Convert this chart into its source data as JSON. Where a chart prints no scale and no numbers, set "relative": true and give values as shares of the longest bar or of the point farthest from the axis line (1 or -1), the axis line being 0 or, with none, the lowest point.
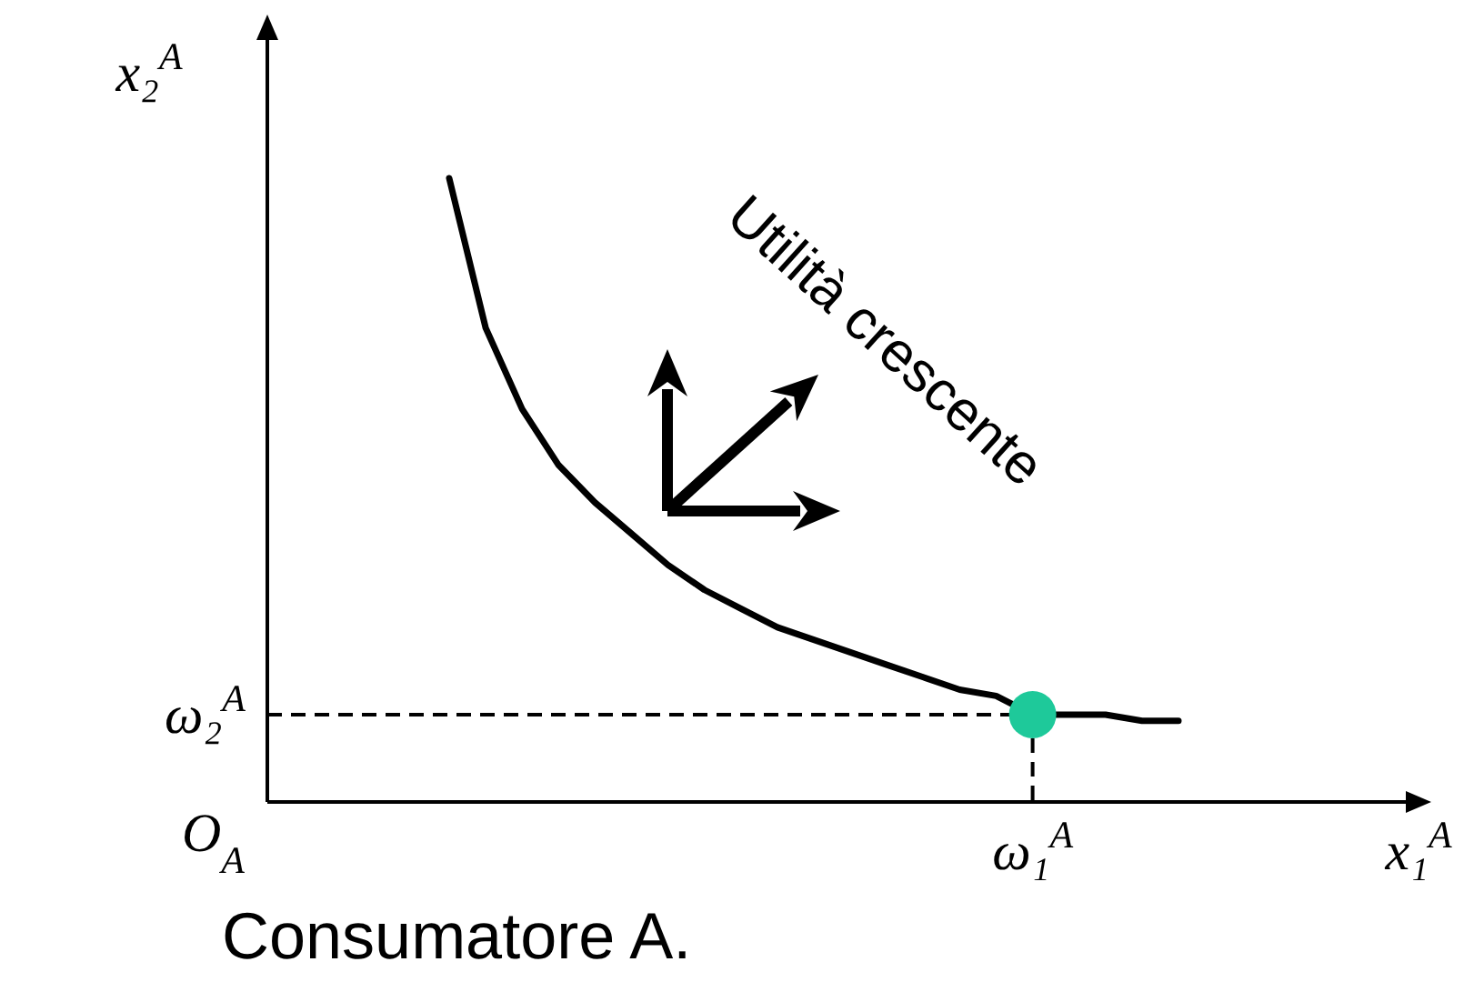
{
  "chart_data": {
    "type": "line",
    "relative": true,
    "xlabel": "x₁$^{A}$",
    "ylabel": "x₂$^{A}$",
    "categories": [
      null,
      null,
      null,
      null,
      null,
      null,
      null,
      null,
      null,
      null,
      null,
      null,
      null,
      null,
      null,
      null,
      null,
      null,
      null,
      null,
      null
    ],
    "series": [
      {
        "color": "#000000",
        "line_style": "solid",
        "values": [
          1.0,
          0.76,
          0.63,
          0.54,
          0.48,
          0.43,
          0.38,
          0.34,
          0.31,
          0.28,
          0.26,
          0.24,
          0.22,
          0.2,
          0.18,
          0.17,
          0.14,
          0.14,
          0.14,
          0.13,
          0.13
        ]
      }
    ],
    "ref_lines": [
      {
        "axis": "y",
        "value": 0.14,
        "label": "ω₂$^{A}$",
        "line_style": "dashed",
        "color": "#000000"
      }
    ],
    "annotations": [
      "O$_{A}$",
      "Utilità crescente",
      "Consumatore A.",
      "ω₁$^{A}$"
    ]
  }
}
